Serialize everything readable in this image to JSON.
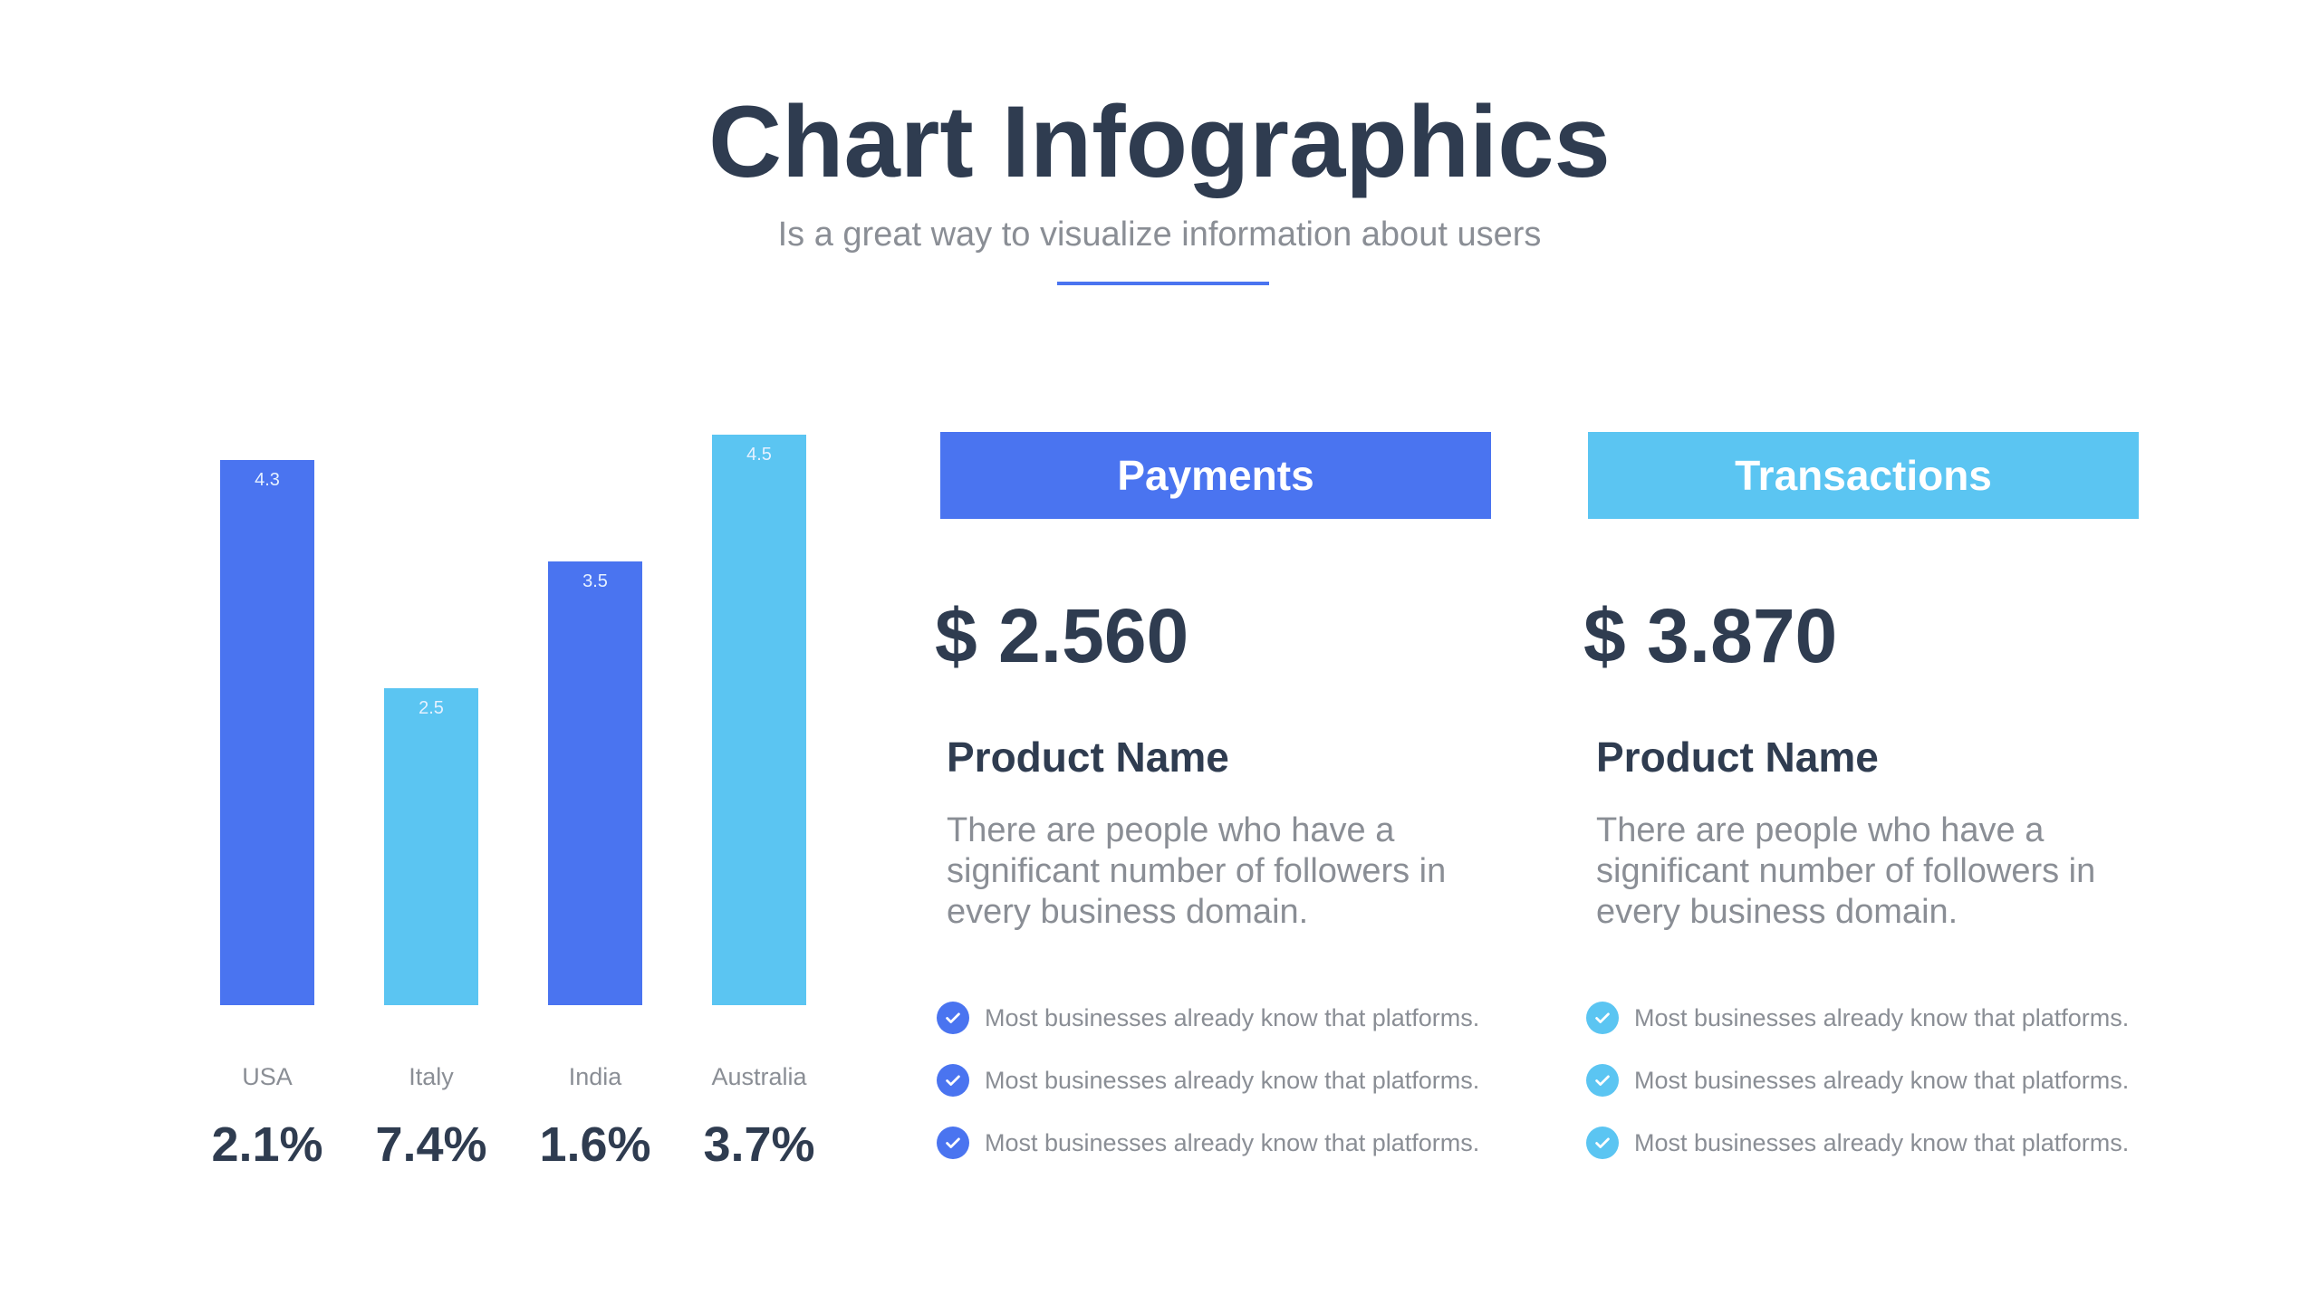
{
  "header": {
    "title": "Chart Infographics",
    "subtitle": "Is a great way to visualize information about users",
    "divider_color": "#4a74f0"
  },
  "chart_data": {
    "type": "bar",
    "categories": [
      "USA",
      "Italy",
      "India",
      "Australia"
    ],
    "values": [
      4.3,
      2.5,
      3.5,
      4.5
    ],
    "value_labels": [
      "4.3",
      "2.5",
      "3.5",
      "4.5"
    ],
    "percentages": [
      "2.1%",
      "7.4%",
      "1.6%",
      "3.7%"
    ],
    "bar_colors": [
      "#4a74f0",
      "#5bc5f2",
      "#4a74f0",
      "#5bc5f2"
    ],
    "ylim": [
      0,
      4.5
    ],
    "grid": false,
    "title": "",
    "xlabel": "",
    "ylabel": ""
  },
  "panels": [
    {
      "header": "Payments",
      "color": "#4a74f0",
      "amount": "$ 2.560",
      "product_name": "Product Name",
      "description": "There are people who have a significant number of followers in every business domain.",
      "bullets": [
        "Most businesses already know that platforms.",
        "Most businesses already know that platforms.",
        "Most businesses already know that platforms."
      ],
      "check_icon": "check-circle-icon"
    },
    {
      "header": "Transactions",
      "color": "#5bc5f2",
      "amount": "$ 3.870",
      "product_name": "Product Name",
      "description": "There are people who have a significant number of followers in every business domain.",
      "bullets": [
        "Most businesses already know that platforms.",
        "Most businesses already know that platforms.",
        "Most businesses already know that platforms."
      ],
      "check_icon": "check-circle-icon"
    }
  ]
}
